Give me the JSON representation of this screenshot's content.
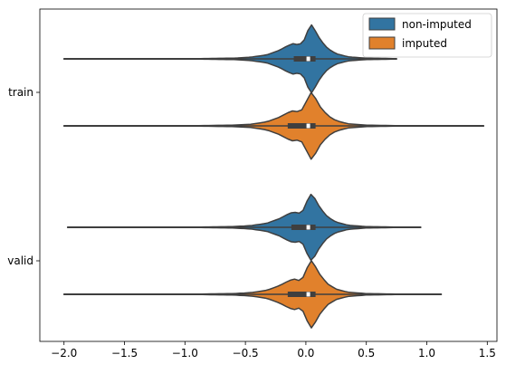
{
  "chart_data": {
    "type": "violin",
    "orientation": "horizontal",
    "categories": [
      "train",
      "valid"
    ],
    "xlim": [
      -2.2,
      1.58
    ],
    "xticks": [
      {
        "value": -2.0,
        "label": "−2.0"
      },
      {
        "value": -1.5,
        "label": "−1.5"
      },
      {
        "value": -1.0,
        "label": "−1.0"
      },
      {
        "value": -0.5,
        "label": "−0.5"
      },
      {
        "value": 0.0,
        "label": "0.0"
      },
      {
        "value": 0.5,
        "label": "0.5"
      },
      {
        "value": 1.0,
        "label": "1.0"
      },
      {
        "value": 1.5,
        "label": "1.5"
      }
    ],
    "grid": false,
    "legend": {
      "position": "upper right"
    },
    "series": [
      {
        "name": "non-imputed",
        "color": "#3274a1",
        "data": [
          {
            "category": "train",
            "min": -2.0,
            "q1": -0.1,
            "median": 0.02,
            "q3": 0.08,
            "max": 0.75
          },
          {
            "category": "valid",
            "min": -1.97,
            "q1": -0.12,
            "median": 0.02,
            "q3": 0.08,
            "max": 0.95
          }
        ]
      },
      {
        "name": "imputed",
        "color": "#e1812c",
        "data": [
          {
            "category": "train",
            "min": -2.0,
            "q1": -0.15,
            "median": 0.02,
            "q3": 0.08,
            "max": 1.47
          },
          {
            "category": "valid",
            "min": -2.0,
            "q1": -0.15,
            "median": 0.02,
            "q3": 0.08,
            "max": 1.12
          }
        ]
      }
    ],
    "density_shape": [
      [
        -2.0,
        0.0
      ],
      [
        -1.5,
        0.0
      ],
      [
        -1.0,
        0.003
      ],
      [
        -0.6,
        0.02
      ],
      [
        -0.45,
        0.05
      ],
      [
        -0.32,
        0.12
      ],
      [
        -0.22,
        0.25
      ],
      [
        -0.15,
        0.38
      ],
      [
        -0.1,
        0.45
      ],
      [
        -0.06,
        0.4
      ],
      [
        -0.02,
        0.5
      ],
      [
        0.02,
        0.85
      ],
      [
        0.05,
        1.0
      ],
      [
        0.08,
        0.8
      ],
      [
        0.12,
        0.55
      ],
      [
        0.18,
        0.3
      ],
      [
        0.25,
        0.15
      ],
      [
        0.35,
        0.06
      ],
      [
        0.5,
        0.02
      ],
      [
        0.8,
        0.005
      ],
      [
        1.5,
        0.0
      ]
    ]
  }
}
